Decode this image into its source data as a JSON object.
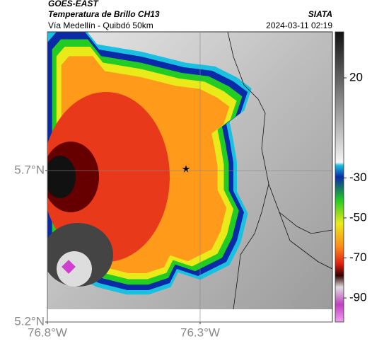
{
  "header": {
    "source": "GOES-EAST",
    "title": "Temperatura de Brillo CH13",
    "subtitle": "Vía Medellín - Quibdó 50km",
    "brand": "SIATA",
    "timestamp": "2024-03-11 02:19"
  },
  "map": {
    "xlim": [
      -76.8,
      -75.867
    ],
    "ylim": [
      5.2,
      6.158
    ],
    "xticks": [
      {
        "value": -76.8,
        "label": "76.8°W"
      },
      {
        "value": -76.3,
        "label": "76.3°W"
      }
    ],
    "yticks": [
      {
        "value": 5.7,
        "label": "5.7°N"
      },
      {
        "value": 5.2,
        "label": "5.2°N"
      }
    ],
    "grid": true
  },
  "colorbar": {
    "clim": [
      -102,
      43
    ],
    "ticks": [
      20,
      -30,
      -50,
      -70,
      -90
    ]
  }
}
